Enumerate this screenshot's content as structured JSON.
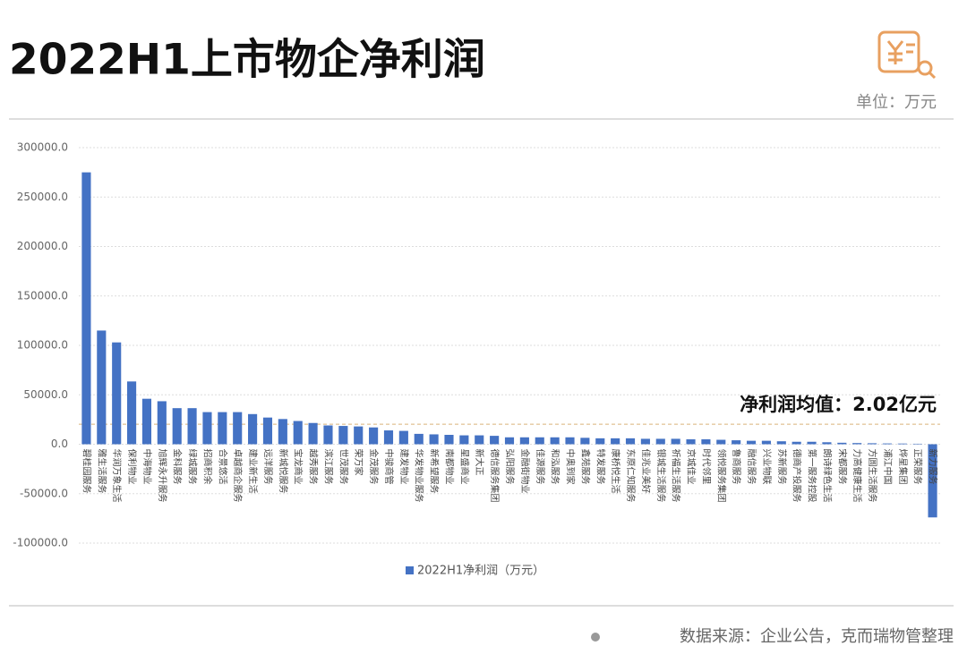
{
  "chart_data": {
    "type": "bar",
    "title": "2022H1上市物企净利润",
    "unit": "单位：万元",
    "annotation": "净利润均值：2.02亿元",
    "mean_value": 20200,
    "source": "数据来源：企业公告，克而瑞物管整理",
    "legend": "2022H1净利润（万元）",
    "color": "#4472c4",
    "categories": [
      "碧桂园服务",
      "雅生活服务",
      "华润万象生活",
      "保利物业",
      "中海物业",
      "旭辉永升服务",
      "金科服务",
      "绿城服务",
      "招商积余",
      "合景悠活",
      "卓越商企服务",
      "建业新生活",
      "远洋服务",
      "新城悦服务",
      "宝龙商业",
      "越秀服务",
      "滨江服务",
      "世茂服务",
      "荣万家",
      "金茂服务",
      "中骏商管",
      "建发物业",
      "华发物业服务",
      "新希望服务",
      "南都物业",
      "星盛商业",
      "新大正",
      "德信服务集团",
      "弘阳服务",
      "金融街物业",
      "佳源服务",
      "和泓服务",
      "中奥到家",
      "鑫苑服务",
      "特发服务",
      "康桥悦生活",
      "东原仁知服务",
      "佳兆业美好",
      "银城生活服务",
      "祈福生活服务",
      "京城佳业",
      "时代邻里",
      "领悦服务集团",
      "鲁商服务",
      "融信服务",
      "兴业物联",
      "苏新服务",
      "德商产投服务",
      "第一服务控股",
      "朗诗绿色生活",
      "宋都服务",
      "力高健康生活",
      "方圆生活服务",
      "浦江中国",
      "烨星集团",
      "正荣服务",
      "新力服务"
    ],
    "values": [
      275000,
      115000,
      103000,
      63500,
      46000,
      43500,
      36500,
      36500,
      32500,
      32500,
      32500,
      30500,
      27000,
      25500,
      23500,
      21500,
      19000,
      18500,
      18000,
      17000,
      14000,
      13500,
      10500,
      10000,
      9500,
      9000,
      9000,
      8500,
      7000,
      7000,
      7000,
      7000,
      7000,
      6500,
      6000,
      6000,
      6000,
      5500,
      5500,
      5500,
      5000,
      5000,
      4500,
      4000,
      3500,
      3500,
      3000,
      2500,
      2500,
      2000,
      1500,
      1200,
      1000,
      800,
      700,
      500,
      -74000
    ],
    "ylim": [
      -100000,
      300000
    ],
    "yticks": [
      {
        "value": -100000,
        "label": "-100000.0"
      },
      {
        "value": -50000,
        "label": "-50000.0"
      },
      {
        "value": 0,
        "label": "0.0"
      },
      {
        "value": 50000,
        "label": "50000.0"
      },
      {
        "value": 100000,
        "label": "100000.0"
      },
      {
        "value": 150000,
        "label": "150000.0"
      },
      {
        "value": 200000,
        "label": "200000.0"
      },
      {
        "value": 250000,
        "label": "250000.0"
      },
      {
        "value": 300000,
        "label": "300000.0"
      }
    ],
    "grid": true
  }
}
